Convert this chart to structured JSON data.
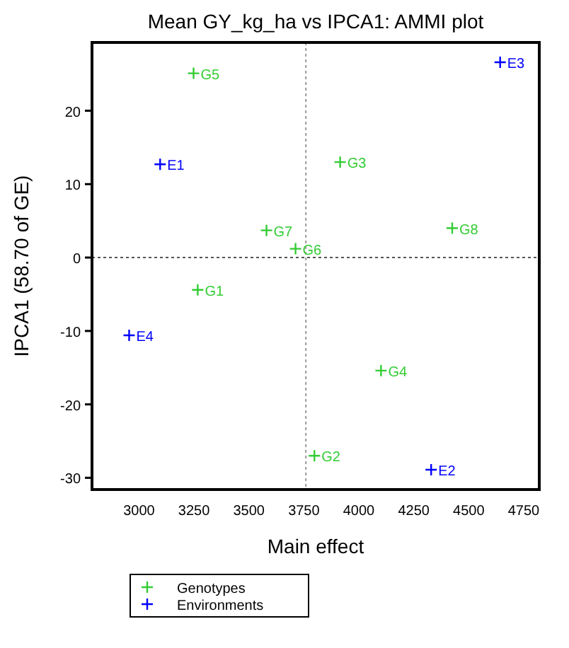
{
  "chart_data": {
    "type": "scatter",
    "title": "Mean GY_kg_ha vs IPCA1: AMMI plot",
    "xlabel": "Main effect",
    "ylabel": "IPCA1 (58.70 of GE)",
    "xlim": [
      2786,
      4821
    ],
    "xticks": [
      3000,
      3250,
      3500,
      3750,
      4000,
      4250,
      4500,
      4750
    ],
    "ylim": [
      -31.6,
      29.3
    ],
    "yticks": [
      -30,
      -20,
      -10,
      0,
      10,
      20
    ],
    "series": [
      {
        "name": "Genotypes",
        "color": "#33cc33",
        "x": [
          3267,
          3798,
          3915,
          4101,
          3248,
          3712,
          3580,
          4425
        ],
        "values": [
          -4.4,
          -27.0,
          13.0,
          -15.4,
          25.1,
          1.2,
          3.7,
          4.0
        ]
      },
      {
        "name": "Environments",
        "color": "#0000ff",
        "x": [
          3096,
          4329,
          4643,
          2955
        ],
        "values": [
          12.7,
          -28.9,
          26.6,
          -10.6
        ]
      }
    ],
    "annotations": [
      {
        "text": "G1",
        "x": 3267,
        "y": -4.4
      },
      {
        "text": "G2",
        "x": 3798,
        "y": -27.0
      },
      {
        "text": "G3",
        "x": 3915,
        "y": 13.0
      },
      {
        "text": "G4",
        "x": 4101,
        "y": -15.4
      },
      {
        "text": "G5",
        "x": 3248,
        "y": 25.1
      },
      {
        "text": "G6",
        "x": 3712,
        "y": 1.2
      },
      {
        "text": "G7",
        "x": 3580,
        "y": 3.7
      },
      {
        "text": "G8",
        "x": 4425,
        "y": 4.0
      },
      {
        "text": "E1",
        "x": 3096,
        "y": 12.7
      },
      {
        "text": "E2",
        "x": 4329,
        "y": -28.9
      },
      {
        "text": "E3",
        "x": 4643,
        "y": 26.6
      },
      {
        "text": "E4",
        "x": 2955,
        "y": -10.6
      }
    ],
    "ref_lines": [
      {
        "axis": "x",
        "value": 3759,
        "color": "#999999",
        "line_style": "dotted"
      },
      {
        "axis": "y",
        "value": 0,
        "color": "#555555",
        "line_style": "dotted"
      }
    ],
    "marker": "cross",
    "legend": "bottom left",
    "grid": false
  }
}
